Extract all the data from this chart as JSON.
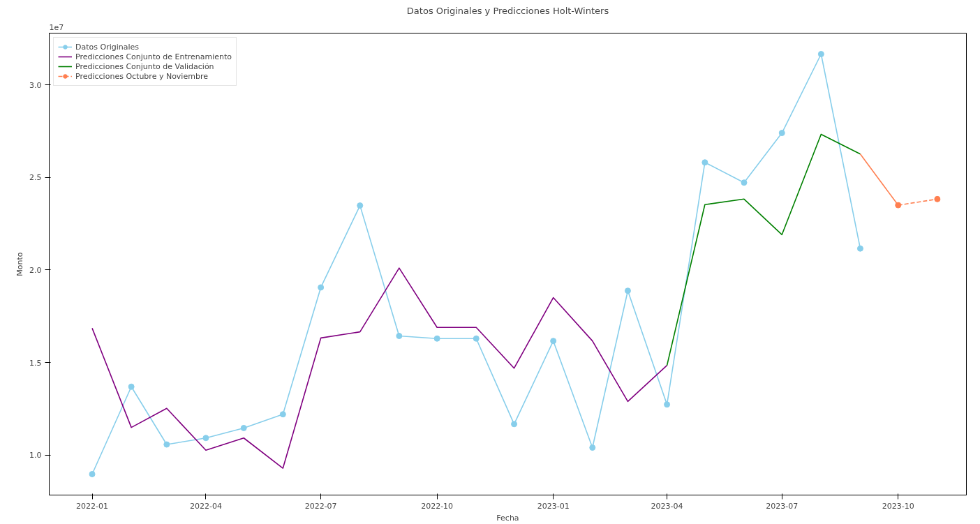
{
  "chart_data": {
    "type": "line",
    "title": "Datos Originales y Predicciones Holt-Winters",
    "xlabel": "Fecha",
    "ylabel": "Monto",
    "annotations": [
      "1e7"
    ],
    "xlim": [
      "2021-11-28",
      "2023-11-24"
    ],
    "ylim": [
      0.785,
      3.279
    ],
    "xticks": [
      "2022-01",
      "2022-04",
      "2022-07",
      "2022-10",
      "2023-01",
      "2023-04",
      "2023-07",
      "2023-10"
    ],
    "yticks": [
      {
        "value": 1.0,
        "label": "1.0"
      },
      {
        "value": 1.5,
        "label": "1.5"
      },
      {
        "value": 2.0,
        "label": "2.0"
      },
      {
        "value": 2.5,
        "label": "2.5"
      },
      {
        "value": 3.0,
        "label": "3.0"
      }
    ],
    "grid": false,
    "legend": "top left",
    "series": [
      {
        "name": "Datos Originales",
        "color": "#87ceeb",
        "marker": "circle",
        "line_style": "solid",
        "x": [
          "2022-01",
          "2022-02",
          "2022-03",
          "2022-04",
          "2022-05",
          "2022-06",
          "2022-07",
          "2022-08",
          "2022-09",
          "2022-10",
          "2022-11",
          "2022-12",
          "2023-01",
          "2023-02",
          "2023-03",
          "2023-04",
          "2023-05",
          "2023-06",
          "2023-07",
          "2023-08",
          "2023-09"
        ],
        "values": [
          0.898,
          1.37,
          1.058,
          1.093,
          1.147,
          1.221,
          1.906,
          2.348,
          1.644,
          1.63,
          1.63,
          1.168,
          1.617,
          1.041,
          1.888,
          1.274,
          2.581,
          2.472,
          2.74,
          3.166,
          2.116
        ]
      },
      {
        "name": "Predicciones Conjunto de Entrenamiento",
        "color": "#800080",
        "marker": "none",
        "line_style": "solid",
        "x": [
          "2022-01",
          "2022-02",
          "2022-03",
          "2022-04",
          "2022-05",
          "2022-06",
          "2022-07",
          "2022-08",
          "2022-09",
          "2022-10",
          "2022-11",
          "2022-12",
          "2023-01",
          "2023-02",
          "2023-03",
          "2023-04"
        ],
        "values": [
          1.686,
          1.15,
          1.253,
          1.027,
          1.093,
          0.93,
          1.633,
          1.666,
          2.011,
          1.69,
          1.69,
          1.47,
          1.851,
          1.617,
          1.29,
          1.485
        ]
      },
      {
        "name": "Predicciones Conjunto de Validación",
        "color": "#008000",
        "marker": "none",
        "line_style": "solid",
        "x": [
          "2023-04",
          "2023-05",
          "2023-06",
          "2023-07",
          "2023-08",
          "2023-09"
        ],
        "values": [
          1.485,
          2.353,
          2.383,
          2.191,
          2.733,
          2.626
        ]
      },
      {
        "color": "#ff7f50",
        "line_style": "solid",
        "x": [
          "2023-09",
          "2023-10"
        ],
        "values": [
          2.626,
          2.35
        ]
      },
      {
        "name": "Predicciones Octubre y Noviembre",
        "color": "#ff7f50",
        "marker": "circle",
        "line_style": "dashed",
        "x": [
          "2023-10",
          "2023-11"
        ],
        "values": [
          2.35,
          2.383
        ]
      }
    ]
  }
}
